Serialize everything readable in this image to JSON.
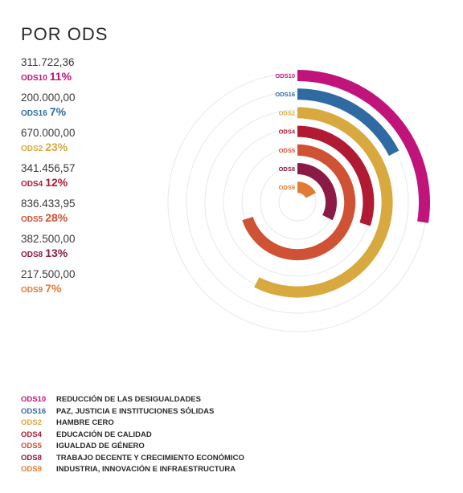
{
  "chart_title": "POR ODS",
  "chart_data": {
    "type": "radial-bar",
    "title": "POR ODS",
    "series": [
      {
        "code": "ODS10",
        "amount": "311.722,36",
        "percent_label": "11%",
        "value": 11,
        "color": "#c0147a",
        "name": "REDUCCIÓN DE LAS DESIGUALDADES"
      },
      {
        "code": "ODS16",
        "amount": "200.000,00",
        "percent_label": "7%",
        "value": 7,
        "color": "#2f6aa3",
        "name": "PAZ, JUSTICIA E INSTITUCIONES SÓLIDAS"
      },
      {
        "code": "ODS2",
        "amount": "670.000,00",
        "percent_label": "23%",
        "value": 23,
        "color": "#d8a93f",
        "name": "HAMBRE CERO"
      },
      {
        "code": "ODS4",
        "amount": "341.456,57",
        "percent_label": "12%",
        "value": 12,
        "color": "#b01a33",
        "name": "EDUCACIÓN DE CALIDAD"
      },
      {
        "code": "ODS5",
        "amount": "836.433,95",
        "percent_label": "28%",
        "value": 28,
        "color": "#cf5234",
        "name": "IGUALDAD DE GÉNERO"
      },
      {
        "code": "ODS8",
        "amount": "382.500,00",
        "percent_label": "13%",
        "value": 13,
        "color": "#8c1a46",
        "name": "TRABAJO DECENTE Y CRECIMIENTO ECONÓMICO"
      },
      {
        "code": "ODS9",
        "amount": "217.500,00",
        "percent_label": "7%",
        "value": 7,
        "color": "#e07b33",
        "name": "INDUSTRIA, INNOVACIÓN E INFRAESTRUCTURA"
      }
    ],
    "scale_max_percent": 40,
    "grid": true,
    "legend_position": "bottom"
  }
}
